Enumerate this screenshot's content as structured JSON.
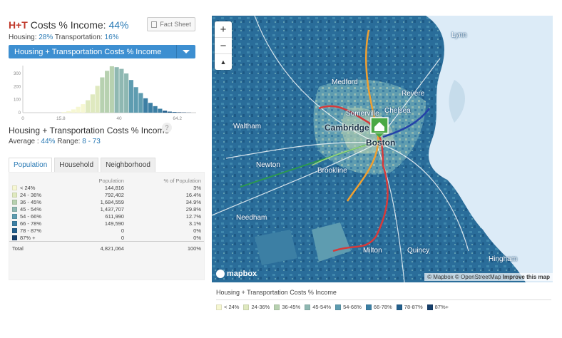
{
  "header": {
    "ht_prefix": "H+T",
    "title_label": " Costs % Income: ",
    "title_value": "44%",
    "housing_label": "Housing: ",
    "housing_value": "28%",
    "transport_label": " Transportation: ",
    "transport_value": "16%",
    "fact_sheet_label": "Fact Sheet"
  },
  "selector": {
    "selected": "Housing + Transportation Costs % Income"
  },
  "chart_data": {
    "type": "bar",
    "x_ticks": [
      "0",
      "15.8",
      "40",
      "64.2"
    ],
    "y_ticks": [
      "300",
      "200",
      "100",
      "0"
    ],
    "ylim": [
      0,
      360
    ],
    "values": [
      0,
      0,
      0,
      0,
      0,
      0,
      0,
      0,
      5,
      12,
      25,
      45,
      65,
      95,
      140,
      205,
      270,
      320,
      355,
      348,
      335,
      300,
      250,
      195,
      150,
      110,
      75,
      50,
      30,
      15,
      8,
      5,
      3,
      2,
      1,
      0
    ]
  },
  "metric": {
    "title": "Housing + Transportation Costs % Income",
    "help": "?",
    "average_label": "Average : ",
    "average_value": "44%",
    "range_label": "Range: ",
    "range_value": "8 - 73"
  },
  "tabs": [
    {
      "label": "Population",
      "active": true
    },
    {
      "label": "Household",
      "active": false
    },
    {
      "label": "Neighborhood",
      "active": false
    }
  ],
  "table": {
    "col_population": "Population",
    "col_percent": "% of Population",
    "rows": [
      {
        "label": "< 24%",
        "population": "144,816",
        "percent": "3%",
        "color": "#f6f7d2"
      },
      {
        "label": "24 - 36%",
        "population": "792,402",
        "percent": "16.4%",
        "color": "#dfe9bf"
      },
      {
        "label": "36 - 45%",
        "population": "1,684,559",
        "percent": "34.9%",
        "color": "#b7d1b0"
      },
      {
        "label": "45 - 54%",
        "population": "1,437,707",
        "percent": "29.8%",
        "color": "#8fb8b2"
      },
      {
        "label": "54 - 66%",
        "population": "611,990",
        "percent": "12.7%",
        "color": "#5e9cb0"
      },
      {
        "label": "66 - 78%",
        "population": "149,590",
        "percent": "3.1%",
        "color": "#3c7fa4"
      },
      {
        "label": "78 - 87%",
        "population": "0",
        "percent": "0%",
        "color": "#235f8c"
      },
      {
        "label": "87% +",
        "population": "0",
        "percent": "0%",
        "color": "#163f6b"
      }
    ],
    "total_label": "Total",
    "total_population": "4,821,064",
    "total_percent": "100%"
  },
  "map": {
    "zoom_in": "+",
    "zoom_out": "−",
    "compass": "▲",
    "labels": [
      "Lynn",
      "Medford",
      "Revere",
      "Somerville",
      "Chelsea",
      "Cambridge",
      "Boston",
      "Waltham",
      "Newton",
      "Brookline",
      "Needham",
      "Milton",
      "Quincy",
      "Hingham"
    ],
    "logo": "mapbox",
    "attribution": "© Mapbox © OpenStreetMap ",
    "improve": "Improve this map"
  },
  "legend": {
    "title": "Housing + Transportation Costs % Income",
    "items": [
      {
        "label": "< 24%",
        "color": "#f6f7d2"
      },
      {
        "label": "24-36%",
        "color": "#dfe9bf"
      },
      {
        "label": "36-45%",
        "color": "#b7d1b0"
      },
      {
        "label": "45-54%",
        "color": "#8fb8b2"
      },
      {
        "label": "54-66%",
        "color": "#5e9cb0"
      },
      {
        "label": "66-78%",
        "color": "#3c7fa4"
      },
      {
        "label": "78-87%",
        "color": "#235f8c"
      },
      {
        "label": "87%+",
        "color": "#163f6b"
      }
    ]
  }
}
